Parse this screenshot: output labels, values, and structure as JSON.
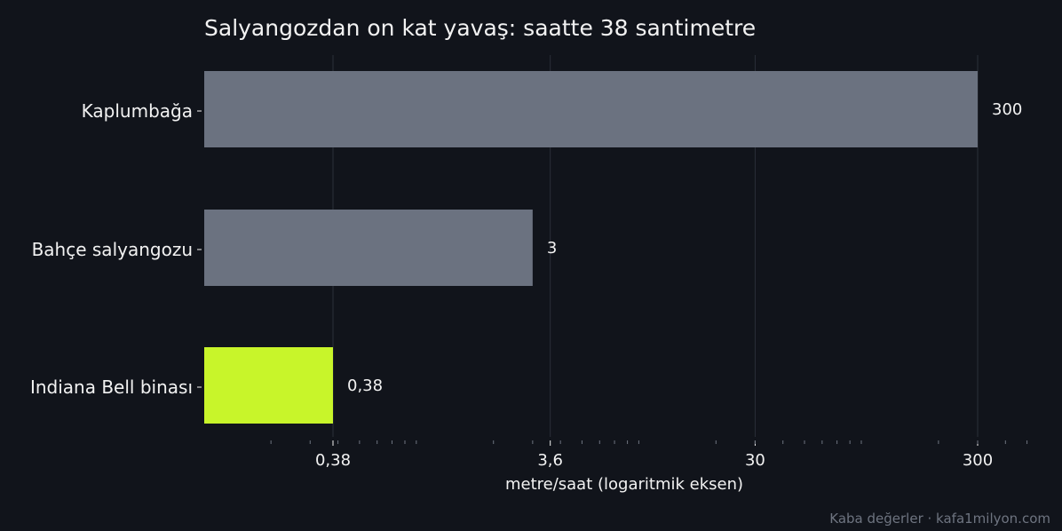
{
  "chart_data": {
    "type": "bar",
    "orientation": "horizontal",
    "title": "Salyangozdan on kat yavaş: saatte 38 santimetre",
    "categories": [
      "Kaplumbağa",
      "Bahçe salyangozu",
      "Indiana Bell binası"
    ],
    "values": [
      300,
      3,
      0.38
    ],
    "value_labels": [
      "300",
      "3",
      "0,38"
    ],
    "colors": [
      "#6b7280",
      "#6b7280",
      "#c8f52a"
    ],
    "xscale": "log",
    "xlim": [
      0.15,
      500
    ],
    "xticks": [
      0.38,
      3.6,
      30,
      300
    ],
    "xtick_labels": [
      "0,38",
      "3,6",
      "30",
      "300"
    ],
    "xlabel": "metre/saat (logaritmik eksen)",
    "ylabel": "",
    "grid": "vertical"
  },
  "footer": "Kaba değerler · kafa1milyon.com",
  "colors": {
    "background": "#11141b",
    "grid": "#2a2f38",
    "text": "#f2f2f2",
    "muted": "#6e7480"
  }
}
